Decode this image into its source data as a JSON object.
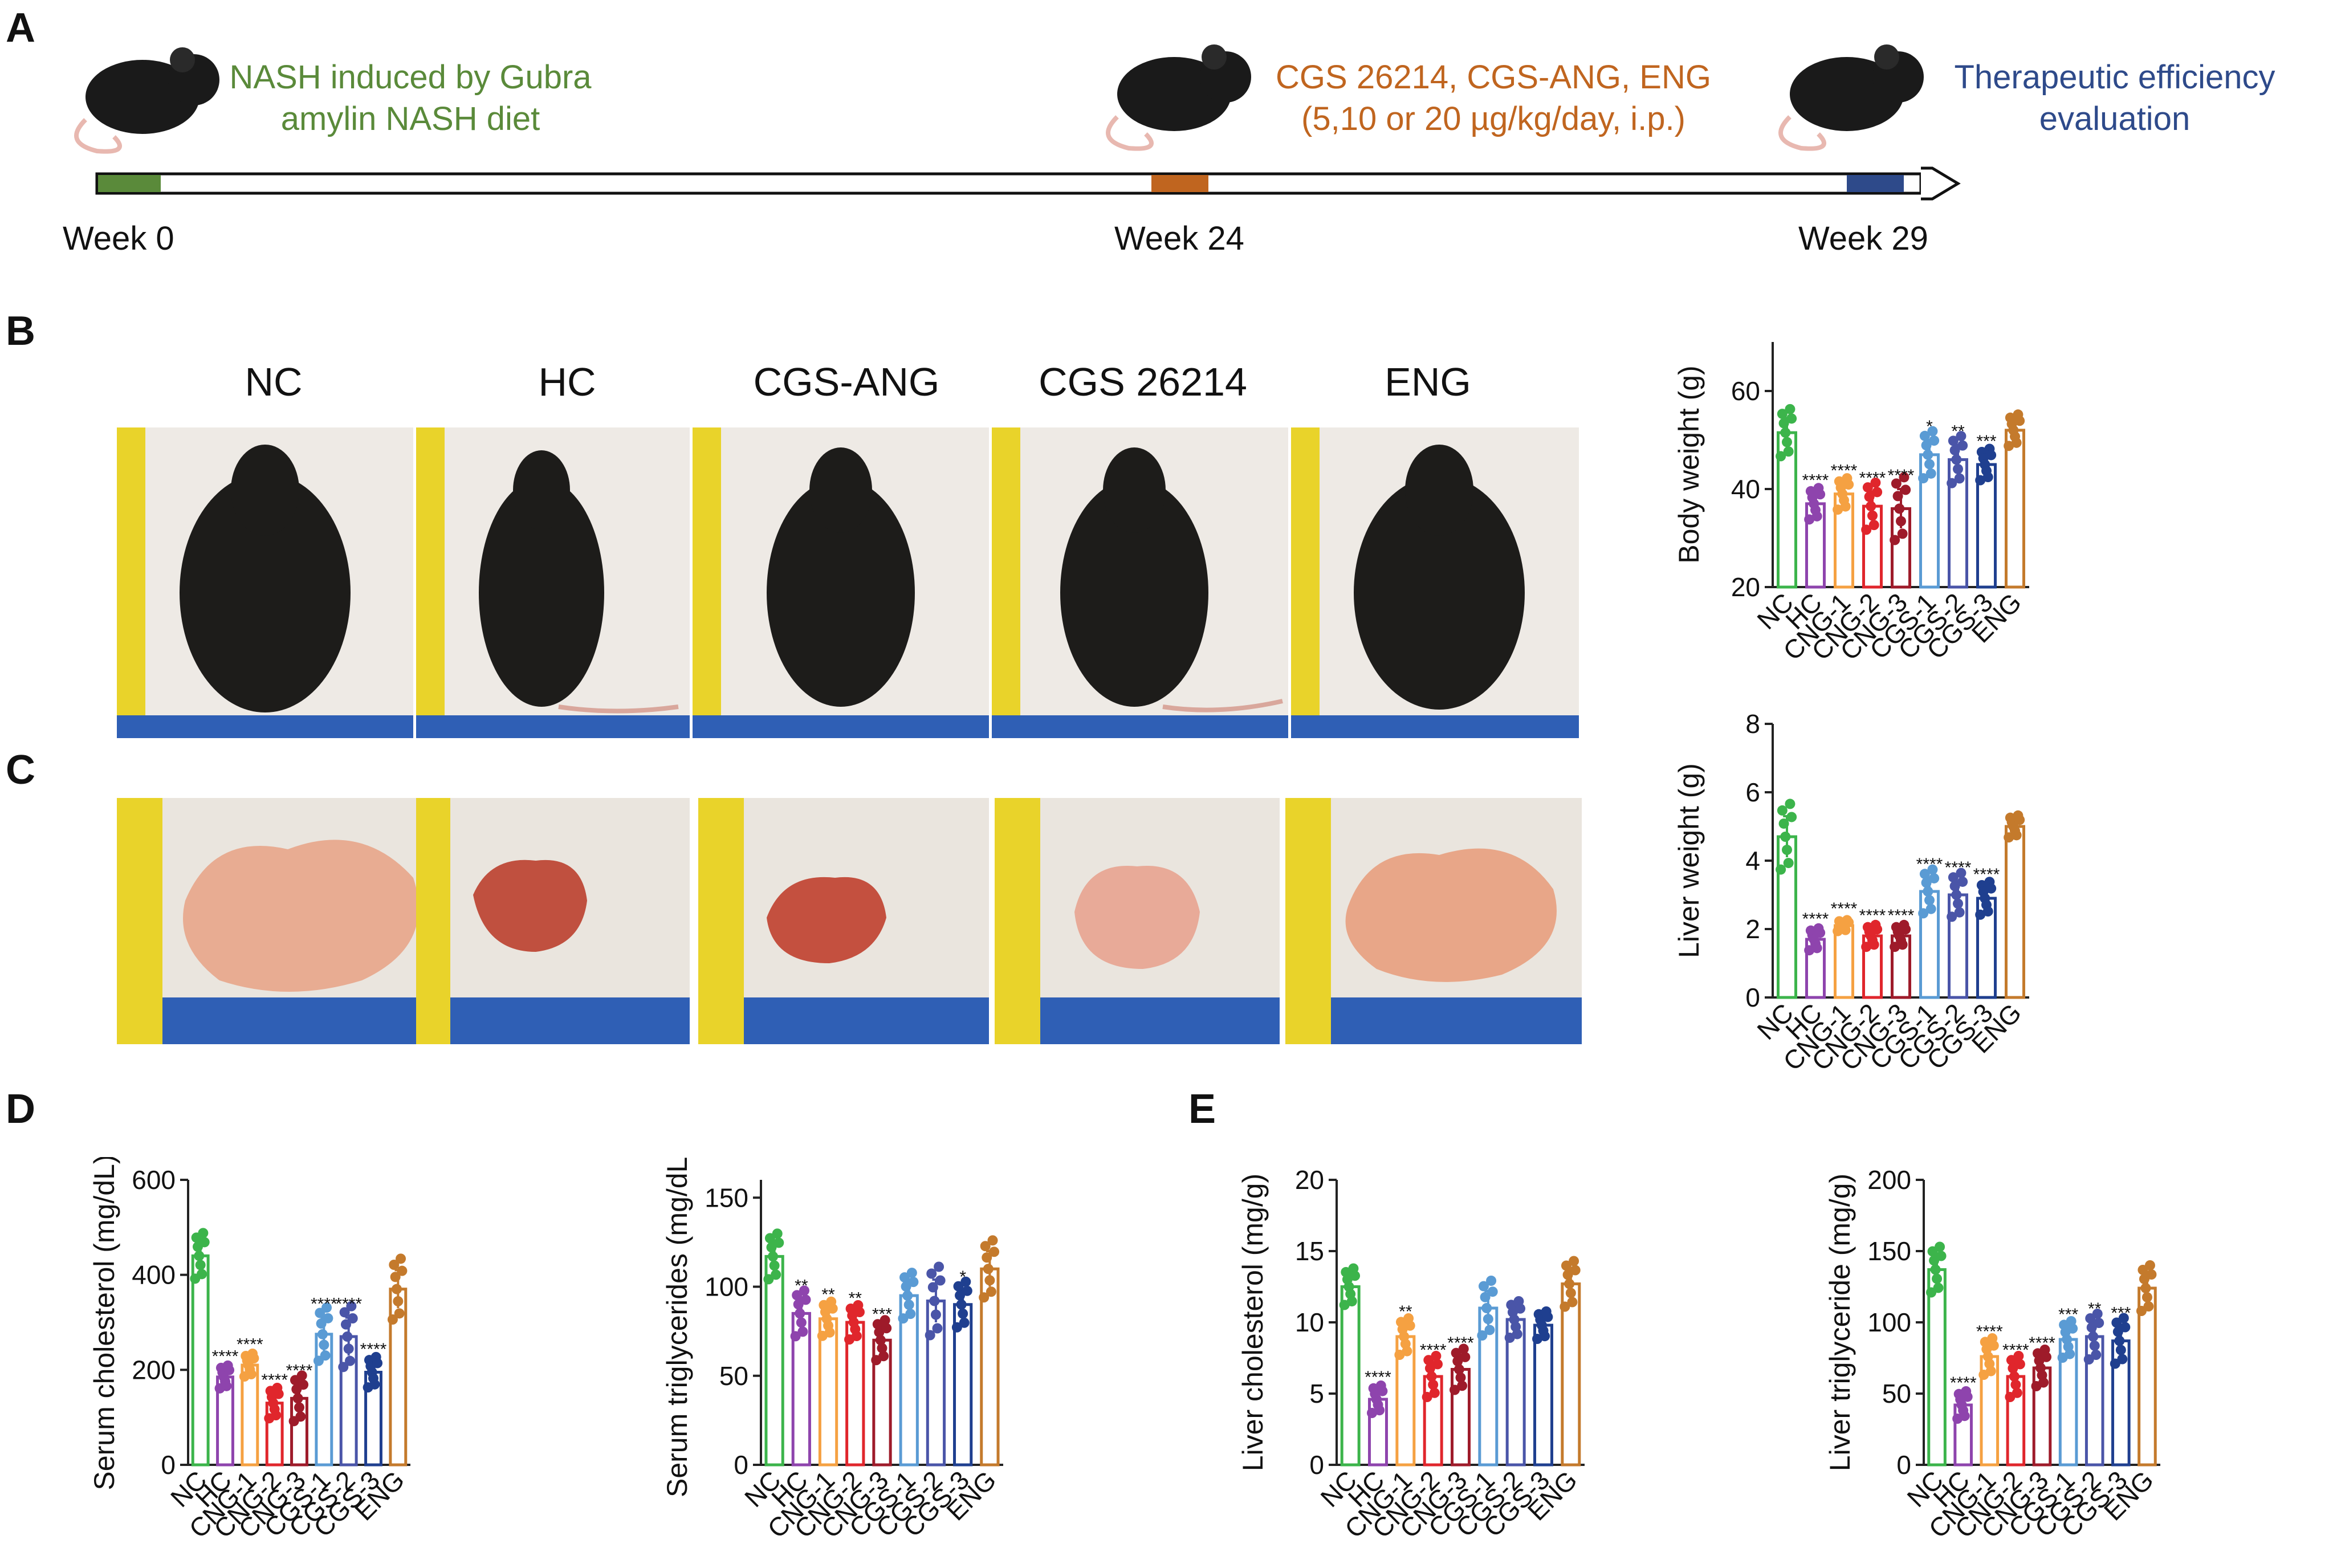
{
  "panels": {
    "a": "A",
    "b": "B",
    "c": "C",
    "d": "D",
    "e": "E"
  },
  "timeline": {
    "step1": [
      "NASH induced by Gubra",
      "amylin NASH diet"
    ],
    "step2": [
      "CGS 26214, CGS-ANG, ENG",
      "(5,10 or 20 µg/kg/day, i.p.)"
    ],
    "step3": [
      "Therapeutic efficiency",
      "evaluation"
    ],
    "weeks": [
      "Week 0",
      "Week 24",
      "Week 29"
    ],
    "colors": {
      "green": "#5a8a3a",
      "orange": "#c0651f",
      "blue": "#2e4a8a"
    }
  },
  "photo_groups": [
    "NC",
    "HC",
    "CGS-ANG",
    "CGS 26214",
    "ENG"
  ],
  "group_colors": [
    "#3cb44b",
    "#8e44ad",
    "#f5a142",
    "#e0262c",
    "#9e1b2a",
    "#5a9bd4",
    "#4a55a8",
    "#1f3f8f",
    "#c47a2c"
  ],
  "chart_data": [
    {
      "type": "bar",
      "id": "body-weight",
      "categories": [
        "NC",
        "HC",
        "CNG-1",
        "CNG-2",
        "CNG-3",
        "CGS-1",
        "CGS-2",
        "CGS-3",
        "ENG"
      ],
      "values": [
        51.5,
        37,
        39,
        36.5,
        36,
        47,
        46,
        45,
        52
      ],
      "errors": [
        3,
        2,
        2,
        3,
        4,
        3,
        3,
        2,
        2
      ],
      "sig": [
        "",
        "****",
        "****",
        "****",
        "****",
        "*",
        "**",
        "***",
        ""
      ],
      "ylabel": "Body weight (g)",
      "ylim": [
        20,
        70
      ],
      "yticks": [
        20,
        40,
        60
      ]
    },
    {
      "type": "bar",
      "id": "liver-weight",
      "categories": [
        "NC",
        "HC",
        "CNG-1",
        "CNG-2",
        "CNG-3",
        "CGS-1",
        "CGS-2",
        "CGS-3",
        "ENG"
      ],
      "values": [
        4.7,
        1.7,
        2.1,
        1.8,
        1.8,
        3.1,
        3.0,
        2.9,
        5.0
      ],
      "errors": [
        0.6,
        0.2,
        0.1,
        0.2,
        0.2,
        0.4,
        0.4,
        0.3,
        0.2
      ],
      "sig": [
        "",
        "****",
        "****",
        "****",
        "****",
        "****",
        "****",
        "****",
        ""
      ],
      "ylabel": "Liver weight (g)",
      "ylim": [
        0,
        8
      ],
      "yticks": [
        0,
        2,
        4,
        6,
        8
      ]
    },
    {
      "type": "bar",
      "id": "serum-cholesterol",
      "categories": [
        "NC",
        "HC",
        "CNG-1",
        "CNG-2",
        "CNG-3",
        "CGS-1",
        "CGS-2",
        "CGS-3",
        "ENG"
      ],
      "values": [
        440,
        185,
        210,
        130,
        140,
        275,
        270,
        195,
        370
      ],
      "errors": [
        30,
        15,
        15,
        20,
        30,
        35,
        40,
        20,
        40
      ],
      "sig": [
        "",
        "****",
        "****",
        "****",
        "****",
        "****",
        "****",
        "****",
        ""
      ],
      "ylabel": "Serum cholesterol (mg/dL)",
      "ylim": [
        0,
        600
      ],
      "yticks": [
        0,
        200,
        400,
        600
      ]
    },
    {
      "type": "bar",
      "id": "serum-triglycerides",
      "categories": [
        "NC",
        "HC",
        "CNG-1",
        "CNG-2",
        "CNG-3",
        "CGS-1",
        "CGS-2",
        "CGS-3",
        "ENG"
      ],
      "values": [
        117,
        85,
        82,
        80,
        70,
        95,
        92,
        90,
        110
      ],
      "errors": [
        8,
        8,
        6,
        6,
        7,
        8,
        12,
        8,
        10
      ],
      "sig": [
        "",
        "**",
        "**",
        "**",
        "***",
        "",
        "",
        "*",
        ""
      ],
      "ylabel": "Serum triglycerides (mg/dL)",
      "ylim": [
        0,
        160
      ],
      "yticks": [
        0,
        50,
        100,
        150
      ]
    },
    {
      "type": "bar",
      "id": "liver-cholesterol",
      "categories": [
        "NC",
        "HC",
        "CNG-1",
        "CNG-2",
        "CNG-3",
        "CGS-1",
        "CGS-2",
        "CGS-3",
        "ENG"
      ],
      "values": [
        12.5,
        4.6,
        9.0,
        6.2,
        6.7,
        11.0,
        10.2,
        9.8,
        12.7
      ],
      "errors": [
        0.8,
        0.6,
        0.8,
        0.9,
        0.9,
        1.2,
        0.8,
        0.6,
        1.0
      ],
      "sig": [
        "",
        "****",
        "**",
        "****",
        "****",
        "",
        "",
        "",
        ""
      ],
      "ylabel": "Liver cholesterol (mg/g)",
      "ylim": [
        0,
        20
      ],
      "yticks": [
        0,
        5,
        10,
        15,
        20
      ]
    },
    {
      "type": "bar",
      "id": "liver-triglyceride",
      "categories": [
        "NC",
        "HC",
        "CNG-1",
        "CNG-2",
        "CNG-3",
        "CGS-1",
        "CGS-2",
        "CGS-3",
        "ENG"
      ],
      "values": [
        137,
        42,
        76,
        62,
        68,
        88,
        90,
        87,
        124
      ],
      "errors": [
        10,
        6,
        8,
        9,
        8,
        8,
        10,
        10,
        10
      ],
      "sig": [
        "",
        "****",
        "****",
        "****",
        "****",
        "***",
        "**",
        "***",
        ""
      ],
      "ylabel": "Liver triglyceride (mg/g)",
      "ylim": [
        0,
        200
      ],
      "yticks": [
        0,
        50,
        100,
        150,
        200
      ]
    }
  ]
}
